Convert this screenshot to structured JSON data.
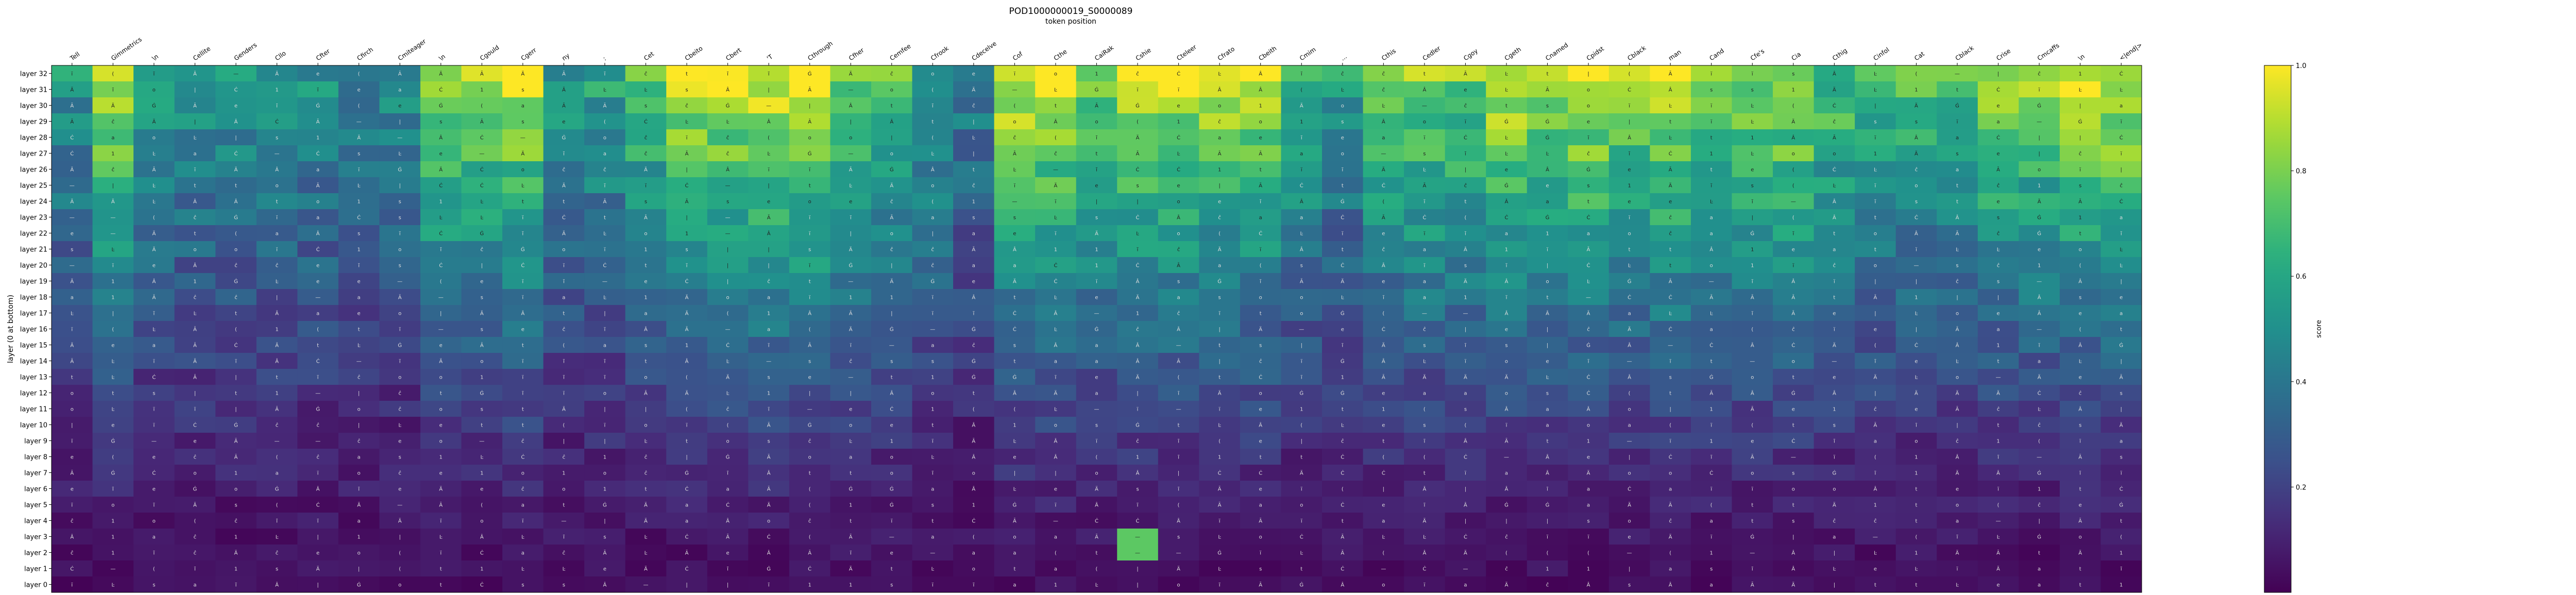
{
  "chart_data": {
    "type": "heatmap",
    "title": "POD1000000019_S0000089",
    "xlabel": "token position",
    "ylabel": "layer (0 at bottom)",
    "colorbar": {
      "label": "score",
      "range": [
        0,
        1
      ],
      "ticks": [
        "0.2",
        "0.4",
        "0.6",
        "0.8",
        "1.0"
      ],
      "colormap": "viridis"
    },
    "x_tokens": [
      "Tell",
      "Gimmetrics",
      "\\n",
      "Cellite",
      "Genders",
      "Cllo",
      "Cfter",
      "Cfirch",
      "Cmiteager",
      "\\n",
      "Cgould",
      "Cgerr",
      "ny",
      ":",
      "Cet",
      "Cbeito",
      "Cbert",
      "'T",
      "Cthrough",
      "Cfher",
      "Cemfee",
      "Cfrook",
      "Cdecelve",
      "Cof",
      "Cthe",
      "CaiRak",
      "Cshie",
      "Cteleer",
      "Cfrato",
      "Cbeith",
      "Cmim",
      "...",
      "Cthis",
      "Cedler",
      "Cgoy",
      "Cgeth",
      "Cnamed",
      "Cpidst",
      "Cblack",
      "man",
      "Cand",
      "Cfe's",
      "Cia",
      "Cthig",
      "Cinfol",
      "Cat",
      "Cblack",
      "Crise",
      "Cmcaffs",
      "\\n",
      "<|end|>"
    ],
    "y_layers": [
      "layer 32",
      "layer 31",
      "layer 30",
      "layer 29",
      "layer 28",
      "layer 27",
      "layer 26",
      "layer 25",
      "layer 24",
      "layer 23",
      "layer 22",
      "layer 21",
      "layer 20",
      "layer 19",
      "layer 18",
      "layer 17",
      "layer 16",
      "layer 15",
      "layer 14",
      "layer 13",
      "layer 12",
      "layer 11",
      "layer 10",
      "layer 9",
      "layer 8",
      "layer 7",
      "layer 6",
      "layer 5",
      "layer 4",
      "layer 3",
      "layer 2",
      "layer 1",
      "layer 0"
    ],
    "column_peak_scores": [
      0.55,
      0.97,
      0.6,
      0.55,
      0.55,
      0.55,
      0.55,
      0.5,
      0.5,
      0.88,
      0.85,
      0.95,
      0.55,
      0.6,
      0.75,
      0.95,
      0.95,
      1.0,
      1.0,
      0.85,
      0.75,
      0.6,
      0.45,
      0.95,
      0.95,
      0.85,
      0.95,
      0.95,
      0.9,
      0.9,
      0.7,
      0.55,
      0.8,
      0.85,
      0.8,
      0.95,
      0.9,
      0.95,
      0.9,
      0.95,
      0.85,
      0.85,
      0.9,
      0.75,
      0.75,
      0.7,
      0.75,
      0.85,
      0.85,
      0.95,
      0.95
    ],
    "notable_cells": [
      {
        "layer": 3,
        "token_index": 26,
        "score": 0.75
      },
      {
        "layer": 2,
        "token_index": 26,
        "score": 0.75
      }
    ]
  }
}
